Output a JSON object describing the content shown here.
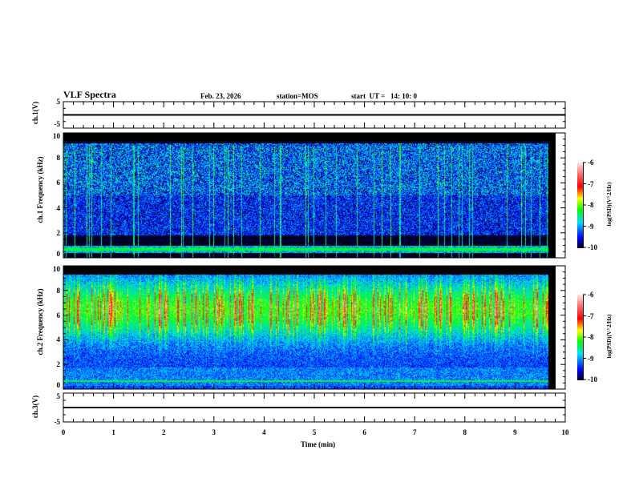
{
  "header": {
    "title": "VLF Spectra",
    "date": "Feb. 23, 2026",
    "station": "station=MOS",
    "start": "start  UT =   14: 10: 0"
  },
  "chart_data": [
    {
      "type": "line",
      "name": "ch1-voltage",
      "ylabel": "ch.1(V)",
      "ylim": [
        -5,
        5
      ],
      "yticks": [
        "5",
        "-5"
      ],
      "value": 0
    },
    {
      "type": "heatmap",
      "name": "ch1-spectrogram",
      "ylabel": "ch.1 Frequency (kHz)",
      "ylim": [
        0,
        10
      ],
      "yticks": [
        "0",
        "2",
        "4",
        "6",
        "8",
        "10"
      ],
      "colorbar": {
        "label": "log(PSD)(V^2/Hz)",
        "range": [
          -10,
          -6
        ],
        "ticks": [
          "-6",
          "-7",
          "-8",
          "-9",
          "-10"
        ]
      },
      "background_level": -9.3
    },
    {
      "type": "heatmap",
      "name": "ch2-spectrogram",
      "ylabel": "ch.2 Frequency (kHz)",
      "ylim": [
        0,
        10
      ],
      "yticks": [
        "0",
        "2",
        "4",
        "6",
        "8",
        "10"
      ],
      "colorbar": {
        "label": "log(PSD)(V^2/Hz)",
        "range": [
          -10,
          -6
        ],
        "ticks": [
          "-6",
          "-7",
          "-8",
          "-9",
          "-10"
        ]
      },
      "background_level": -7.2
    },
    {
      "type": "line",
      "name": "ch3-voltage",
      "ylabel": "ch.3(V)",
      "ylim": [
        -5,
        5
      ],
      "yticks": [
        "5",
        "-5"
      ],
      "value": 0
    }
  ],
  "xaxis": {
    "label": "Time  (min)",
    "range": [
      0,
      10
    ],
    "ticks": [
      "0",
      "1",
      "2",
      "3",
      "4",
      "5",
      "6",
      "7",
      "8",
      "9",
      "10"
    ],
    "data_end": 9.85
  }
}
